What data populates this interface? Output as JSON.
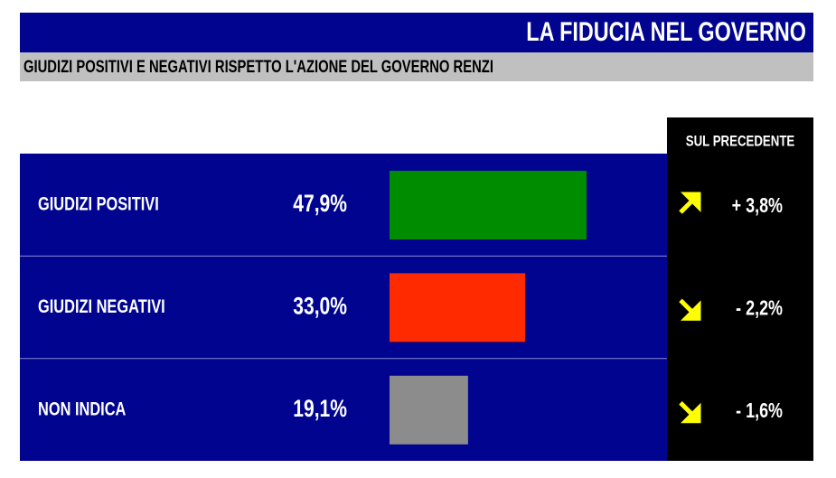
{
  "chart_data": {
    "type": "bar",
    "title": "LA FIDUCIA NEL GOVERNO",
    "subtitle": "GIUDIZI POSITIVI E NEGATIVI RISPETTO L'AZIONE DEL GOVERNO RENZI",
    "categories": [
      "GIUDIZI POSITIVI",
      "GIUDIZI NEGATIVI",
      "NON INDICA"
    ],
    "values": [
      47.9,
      33.0,
      19.1
    ],
    "value_labels": [
      "47,9%",
      "33,0%",
      "19,1%"
    ],
    "colors": [
      "#008c00",
      "#ff2a00",
      "#8c8c8c"
    ],
    "change": {
      "title": "SUL PRECEDENTE",
      "values": [
        3.8,
        -2.2,
        -1.6
      ],
      "value_labels": [
        "+ 3,8%",
        "- 2,2%",
        "- 1,6%"
      ],
      "color": "#ffff00"
    }
  }
}
